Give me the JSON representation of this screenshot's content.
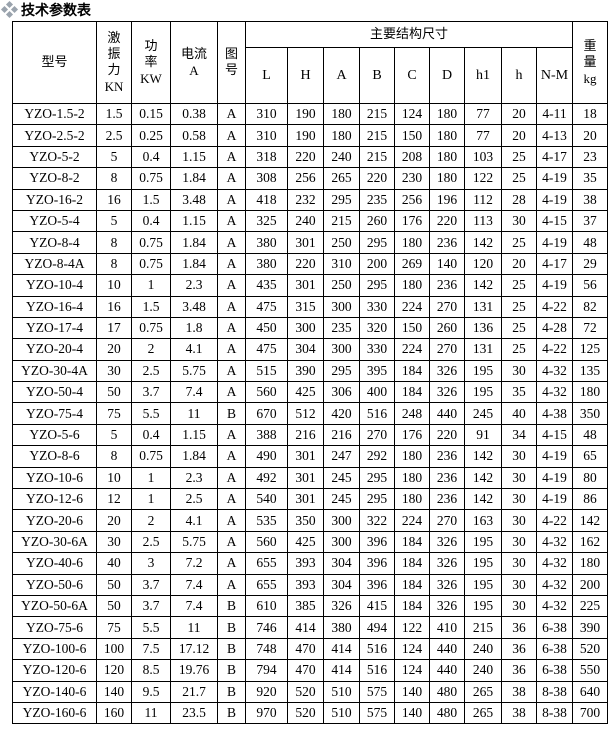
{
  "title": "技术参数表",
  "title_icon": "diamond-cluster-icon",
  "headers": {
    "model": "型号",
    "force": [
      "激",
      "振",
      "力",
      "KN"
    ],
    "power": [
      "功",
      "率",
      "KW"
    ],
    "current": [
      "电流",
      "A"
    ],
    "figure": [
      "图",
      "号"
    ],
    "dimensions_group": "主要结构尺寸",
    "dimensions": [
      "L",
      "H",
      "A",
      "B",
      "C",
      "D",
      "h1",
      "h",
      "N-M"
    ],
    "weight": [
      "重",
      "量",
      "kg"
    ]
  },
  "rows": [
    [
      "YZO-1.5-2",
      "1.5",
      "0.15",
      "0.38",
      "A",
      "310",
      "190",
      "180",
      "215",
      "124",
      "180",
      "77",
      "20",
      "4-11",
      "18"
    ],
    [
      "YZO-2.5-2",
      "2.5",
      "0.25",
      "0.58",
      "A",
      "310",
      "190",
      "180",
      "215",
      "150",
      "180",
      "77",
      "20",
      "4-13",
      "20"
    ],
    [
      "YZO-5-2",
      "5",
      "0.4",
      "1.15",
      "A",
      "318",
      "220",
      "240",
      "215",
      "208",
      "180",
      "103",
      "25",
      "4-17",
      "23"
    ],
    [
      "YZO-8-2",
      "8",
      "0.75",
      "1.84",
      "A",
      "308",
      "256",
      "265",
      "220",
      "230",
      "180",
      "122",
      "25",
      "4-19",
      "35"
    ],
    [
      "YZO-16-2",
      "16",
      "1.5",
      "3.48",
      "A",
      "418",
      "232",
      "295",
      "235",
      "256",
      "196",
      "112",
      "28",
      "4-19",
      "38"
    ],
    [
      "YZO-5-4",
      "5",
      "0.4",
      "1.15",
      "A",
      "325",
      "240",
      "215",
      "260",
      "176",
      "220",
      "113",
      "30",
      "4-15",
      "37"
    ],
    [
      "YZO-8-4",
      "8",
      "0.75",
      "1.84",
      "A",
      "380",
      "301",
      "250",
      "295",
      "180",
      "236",
      "142",
      "25",
      "4-19",
      "48"
    ],
    [
      "YZO-8-4A",
      "8",
      "0.75",
      "1.84",
      "A",
      "380",
      "220",
      "310",
      "200",
      "269",
      "140",
      "120",
      "20",
      "4-17",
      "29"
    ],
    [
      "YZO-10-4",
      "10",
      "1",
      "2.3",
      "A",
      "435",
      "301",
      "250",
      "295",
      "180",
      "236",
      "142",
      "25",
      "4-19",
      "56"
    ],
    [
      "YZO-16-4",
      "16",
      "1.5",
      "3.48",
      "A",
      "475",
      "315",
      "300",
      "330",
      "224",
      "270",
      "131",
      "25",
      "4-22",
      "82"
    ],
    [
      "YZO-17-4",
      "17",
      "0.75",
      "1.8",
      "A",
      "450",
      "300",
      "235",
      "320",
      "150",
      "260",
      "136",
      "25",
      "4-28",
      "72"
    ],
    [
      "YZO-20-4",
      "20",
      "2",
      "4.1",
      "A",
      "475",
      "304",
      "300",
      "330",
      "224",
      "270",
      "131",
      "25",
      "4-22",
      "125"
    ],
    [
      "YZO-30-4A",
      "30",
      "2.5",
      "5.75",
      "A",
      "515",
      "390",
      "295",
      "395",
      "184",
      "326",
      "195",
      "30",
      "4-32",
      "135"
    ],
    [
      "YZO-50-4",
      "50",
      "3.7",
      "7.4",
      "A",
      "560",
      "425",
      "306",
      "400",
      "184",
      "326",
      "195",
      "35",
      "4-32",
      "180"
    ],
    [
      "YZO-75-4",
      "75",
      "5.5",
      "11",
      "B",
      "670",
      "512",
      "420",
      "516",
      "248",
      "440",
      "245",
      "40",
      "4-38",
      "350"
    ],
    [
      "YZO-5-6",
      "5",
      "0.4",
      "1.15",
      "A",
      "388",
      "216",
      "216",
      "270",
      "176",
      "220",
      "91",
      "34",
      "4-15",
      "48"
    ],
    [
      "YZO-8-6",
      "8",
      "0.75",
      "1.84",
      "A",
      "490",
      "301",
      "247",
      "292",
      "180",
      "236",
      "142",
      "30",
      "4-19",
      "65"
    ],
    [
      "YZO-10-6",
      "10",
      "1",
      "2.3",
      "A",
      "492",
      "301",
      "245",
      "295",
      "180",
      "236",
      "142",
      "30",
      "4-19",
      "80"
    ],
    [
      "YZO-12-6",
      "12",
      "1",
      "2.5",
      "A",
      "540",
      "301",
      "245",
      "295",
      "180",
      "236",
      "142",
      "30",
      "4-19",
      "86"
    ],
    [
      "YZO-20-6",
      "20",
      "2",
      "4.1",
      "A",
      "535",
      "350",
      "300",
      "322",
      "224",
      "270",
      "163",
      "30",
      "4-22",
      "142"
    ],
    [
      "YZO-30-6A",
      "30",
      "2.5",
      "5.75",
      "A",
      "560",
      "425",
      "300",
      "396",
      "184",
      "326",
      "195",
      "30",
      "4-32",
      "162"
    ],
    [
      "YZO-40-6",
      "40",
      "3",
      "7.2",
      "A",
      "655",
      "393",
      "304",
      "396",
      "184",
      "326",
      "195",
      "30",
      "4-32",
      "180"
    ],
    [
      "YZO-50-6",
      "50",
      "3.7",
      "7.4",
      "A",
      "655",
      "393",
      "304",
      "396",
      "184",
      "326",
      "195",
      "30",
      "4-32",
      "200"
    ],
    [
      "YZO-50-6A",
      "50",
      "3.7",
      "7.4",
      "B",
      "610",
      "385",
      "326",
      "415",
      "184",
      "326",
      "195",
      "30",
      "4-32",
      "225"
    ],
    [
      "YZO-75-6",
      "75",
      "5.5",
      "11",
      "B",
      "746",
      "414",
      "380",
      "494",
      "122",
      "410",
      "215",
      "36",
      "6-38",
      "390"
    ],
    [
      "YZO-100-6",
      "100",
      "7.5",
      "17.12",
      "B",
      "748",
      "470",
      "414",
      "516",
      "124",
      "440",
      "240",
      "36",
      "6-38",
      "520"
    ],
    [
      "YZO-120-6",
      "120",
      "8.5",
      "19.76",
      "B",
      "794",
      "470",
      "414",
      "516",
      "124",
      "440",
      "240",
      "36",
      "6-38",
      "550"
    ],
    [
      "YZO-140-6",
      "140",
      "9.5",
      "21.7",
      "B",
      "920",
      "520",
      "510",
      "575",
      "140",
      "480",
      "265",
      "38",
      "8-38",
      "640"
    ],
    [
      "YZO-160-6",
      "160",
      "11",
      "23.5",
      "B",
      "970",
      "520",
      "510",
      "575",
      "140",
      "480",
      "265",
      "38",
      "8-38",
      "700"
    ]
  ]
}
